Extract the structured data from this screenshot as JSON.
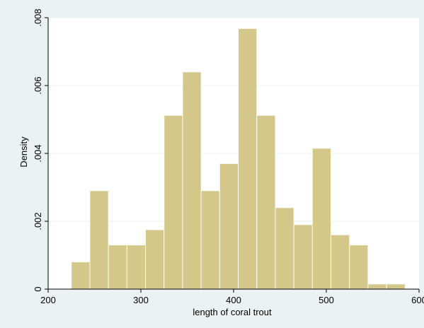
{
  "chart_data": {
    "type": "bar",
    "title": "",
    "xlabel": "length of coral trout",
    "ylabel": "Density",
    "xlim": [
      200,
      600
    ],
    "ylim": [
      0,
      0.008
    ],
    "x_ticks": [
      200,
      300,
      400,
      500,
      600
    ],
    "y_ticks": [
      0,
      0.002,
      0.004,
      0.006,
      0.008
    ],
    "x_tick_labels": [
      "200",
      "300",
      "400",
      "500",
      "600"
    ],
    "y_tick_labels": [
      "0",
      ".002",
      ".004",
      ".006",
      ".008"
    ],
    "bin_width": 20,
    "bins": [
      {
        "x0": 225,
        "x1": 245,
        "density": 0.0008
      },
      {
        "x0": 245,
        "x1": 265,
        "density": 0.0029
      },
      {
        "x0": 265,
        "x1": 285,
        "density": 0.0013
      },
      {
        "x0": 285,
        "x1": 305,
        "density": 0.0013
      },
      {
        "x0": 305,
        "x1": 325,
        "density": 0.00175
      },
      {
        "x0": 325,
        "x1": 345,
        "density": 0.00512
      },
      {
        "x0": 345,
        "x1": 365,
        "density": 0.0064
      },
      {
        "x0": 365,
        "x1": 385,
        "density": 0.0029
      },
      {
        "x0": 385,
        "x1": 405,
        "density": 0.0037
      },
      {
        "x0": 405,
        "x1": 425,
        "density": 0.00768
      },
      {
        "x0": 425,
        "x1": 445,
        "density": 0.00512
      },
      {
        "x0": 445,
        "x1": 465,
        "density": 0.0024
      },
      {
        "x0": 465,
        "x1": 485,
        "density": 0.0019
      },
      {
        "x0": 485,
        "x1": 505,
        "density": 0.00415
      },
      {
        "x0": 505,
        "x1": 525,
        "density": 0.0016
      },
      {
        "x0": 525,
        "x1": 545,
        "density": 0.0013
      },
      {
        "x0": 545,
        "x1": 565,
        "density": 0.00015
      },
      {
        "x0": 565,
        "x1": 585,
        "density": 0.00015
      }
    ],
    "grid": true,
    "legend": "none"
  },
  "colors": {
    "background": "#eaf2f3",
    "plot_area": "#ffffff",
    "bar_fill": "#d3c78a",
    "bar_edge": "#fbfaf2",
    "gridline": "#eaf2f3",
    "axis": "#000000"
  }
}
